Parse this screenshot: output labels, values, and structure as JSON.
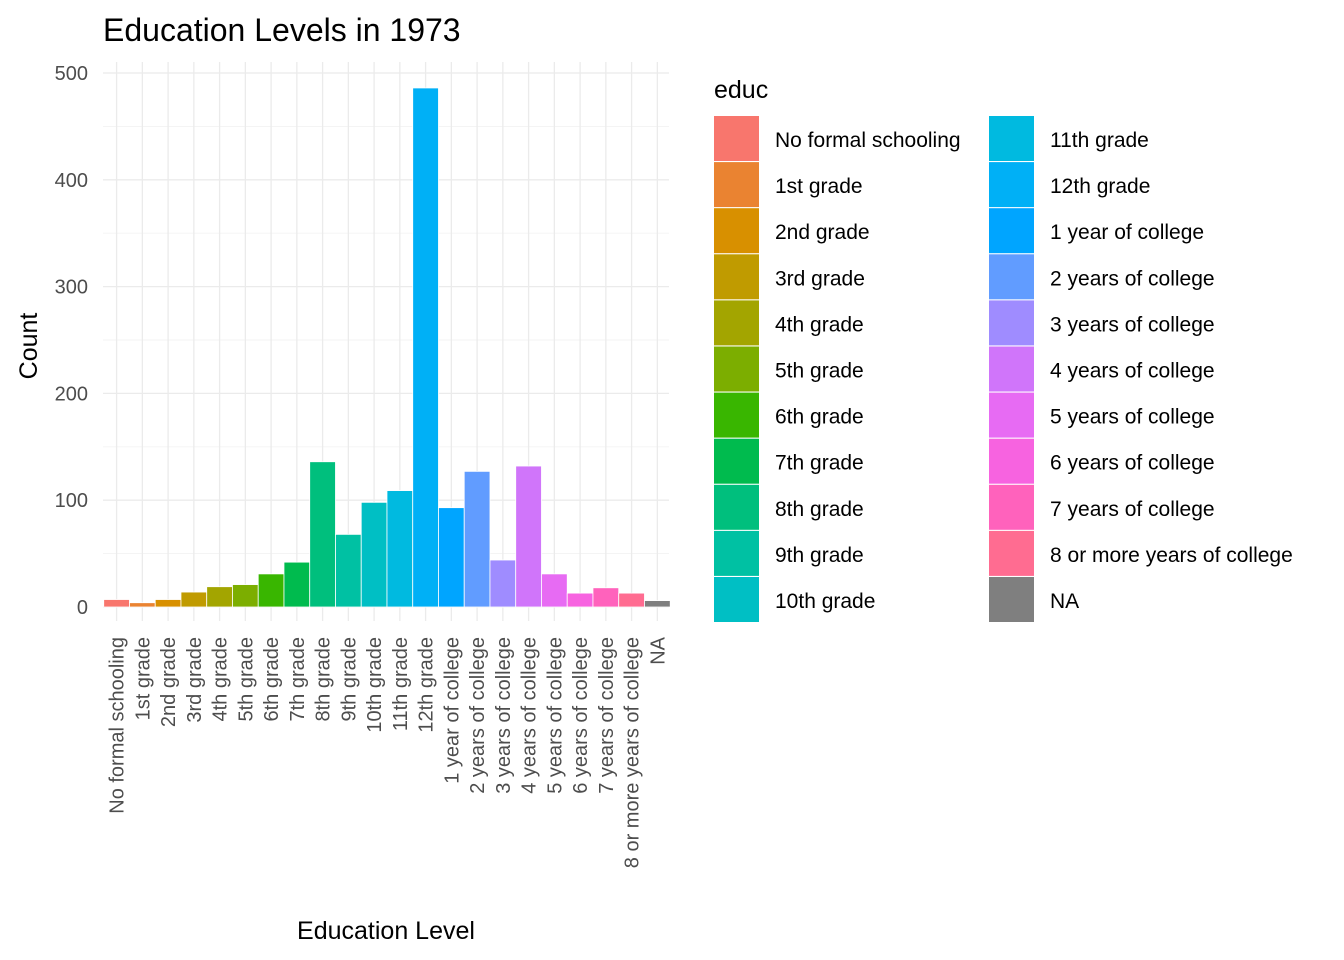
{
  "chart_data": {
    "type": "bar",
    "title": "Education Levels in 1973",
    "xlabel": "Education Level",
    "ylabel": "Count",
    "ylim": [
      0,
      500
    ],
    "yticks": [
      0,
      100,
      200,
      300,
      400,
      500
    ],
    "grid": true,
    "legend_title": "educ",
    "legend_position": "right",
    "categories": [
      "No formal schooling",
      "1st grade",
      "2nd grade",
      "3rd grade",
      "4th grade",
      "5th grade",
      "6th grade",
      "7th grade",
      "8th grade",
      "9th grade",
      "10th grade",
      "11th grade",
      "12th grade",
      "1 year of college",
      "2 years of college",
      "3 years of college",
      "4 years of college",
      "5 years of college",
      "6 years of college",
      "7 years of college",
      "8 or more years of college",
      "NA"
    ],
    "values": [
      7,
      4,
      7,
      14,
      19,
      21,
      31,
      42,
      136,
      68,
      98,
      109,
      486,
      93,
      127,
      44,
      132,
      31,
      13,
      18,
      13,
      6
    ],
    "colors": [
      "#F8766D",
      "#EA8331",
      "#D89000",
      "#C09B00",
      "#A3A500",
      "#7CAE00",
      "#39B600",
      "#00BB4E",
      "#00BF7D",
      "#00C1A3",
      "#00BFC4",
      "#00BAE0",
      "#00B0F6",
      "#00A5FF",
      "#619CFF",
      "#9F8CFF",
      "#D075FA",
      "#E76BF3",
      "#F763E0",
      "#FF62BC",
      "#FF6C91",
      "#7F7F7F"
    ]
  }
}
